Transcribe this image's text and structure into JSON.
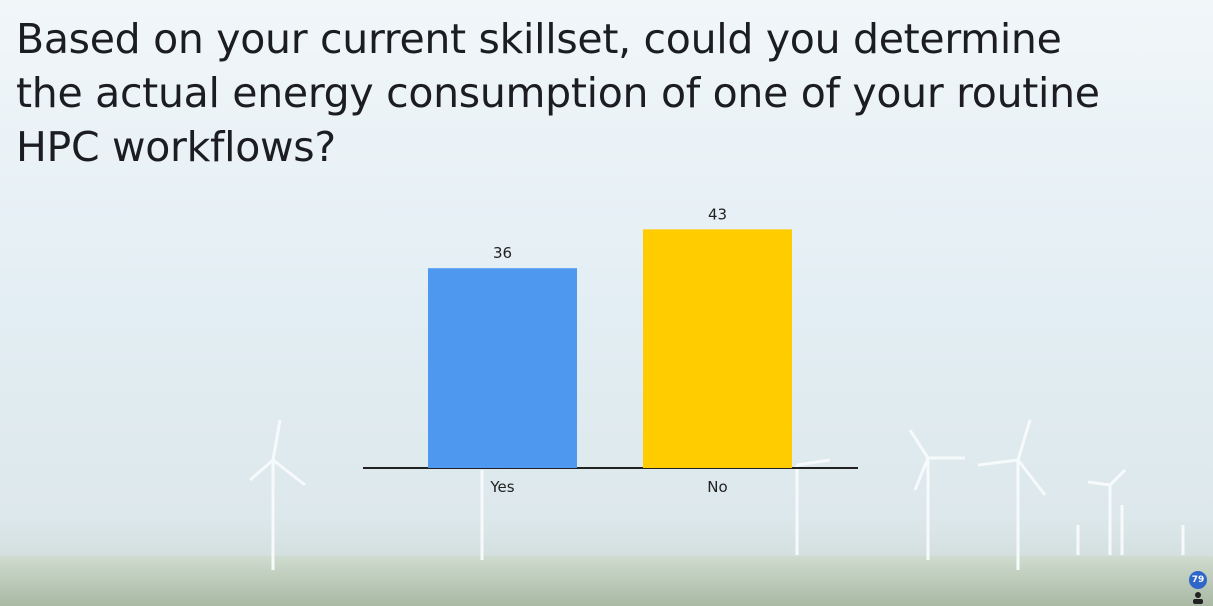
{
  "chart_data": {
    "type": "bar",
    "title": "Based on your current skillset, could you determine the actual energy consumption of one of your routine HPC workflows?",
    "categories": [
      "Yes",
      "No"
    ],
    "values": [
      36,
      43
    ],
    "colors": [
      "#4f98ef",
      "#ffcc00"
    ]
  },
  "respondent_count": 79
}
